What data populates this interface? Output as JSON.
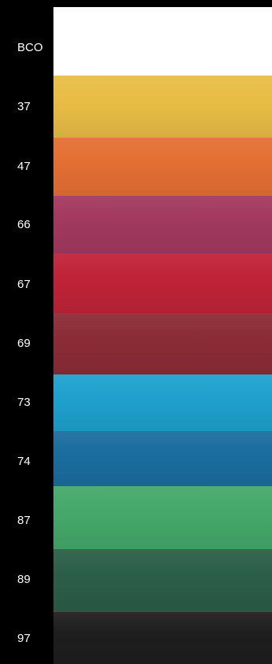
{
  "swatches": [
    {
      "label": "BCO",
      "color": "#ffffff"
    },
    {
      "label": "37",
      "color": "#e8bd45"
    },
    {
      "label": "47",
      "color": "#e46f33"
    },
    {
      "label": "66",
      "color": "#a3395f"
    },
    {
      "label": "67",
      "color": "#c02338"
    },
    {
      "label": "69",
      "color": "#8b2c36"
    },
    {
      "label": "73",
      "color": "#1ea1cd"
    },
    {
      "label": "74",
      "color": "#1b6d9f"
    },
    {
      "label": "87",
      "color": "#45a86a"
    },
    {
      "label": "89",
      "color": "#2b5e48"
    },
    {
      "label": "97",
      "color": "#1e1e1e"
    }
  ]
}
